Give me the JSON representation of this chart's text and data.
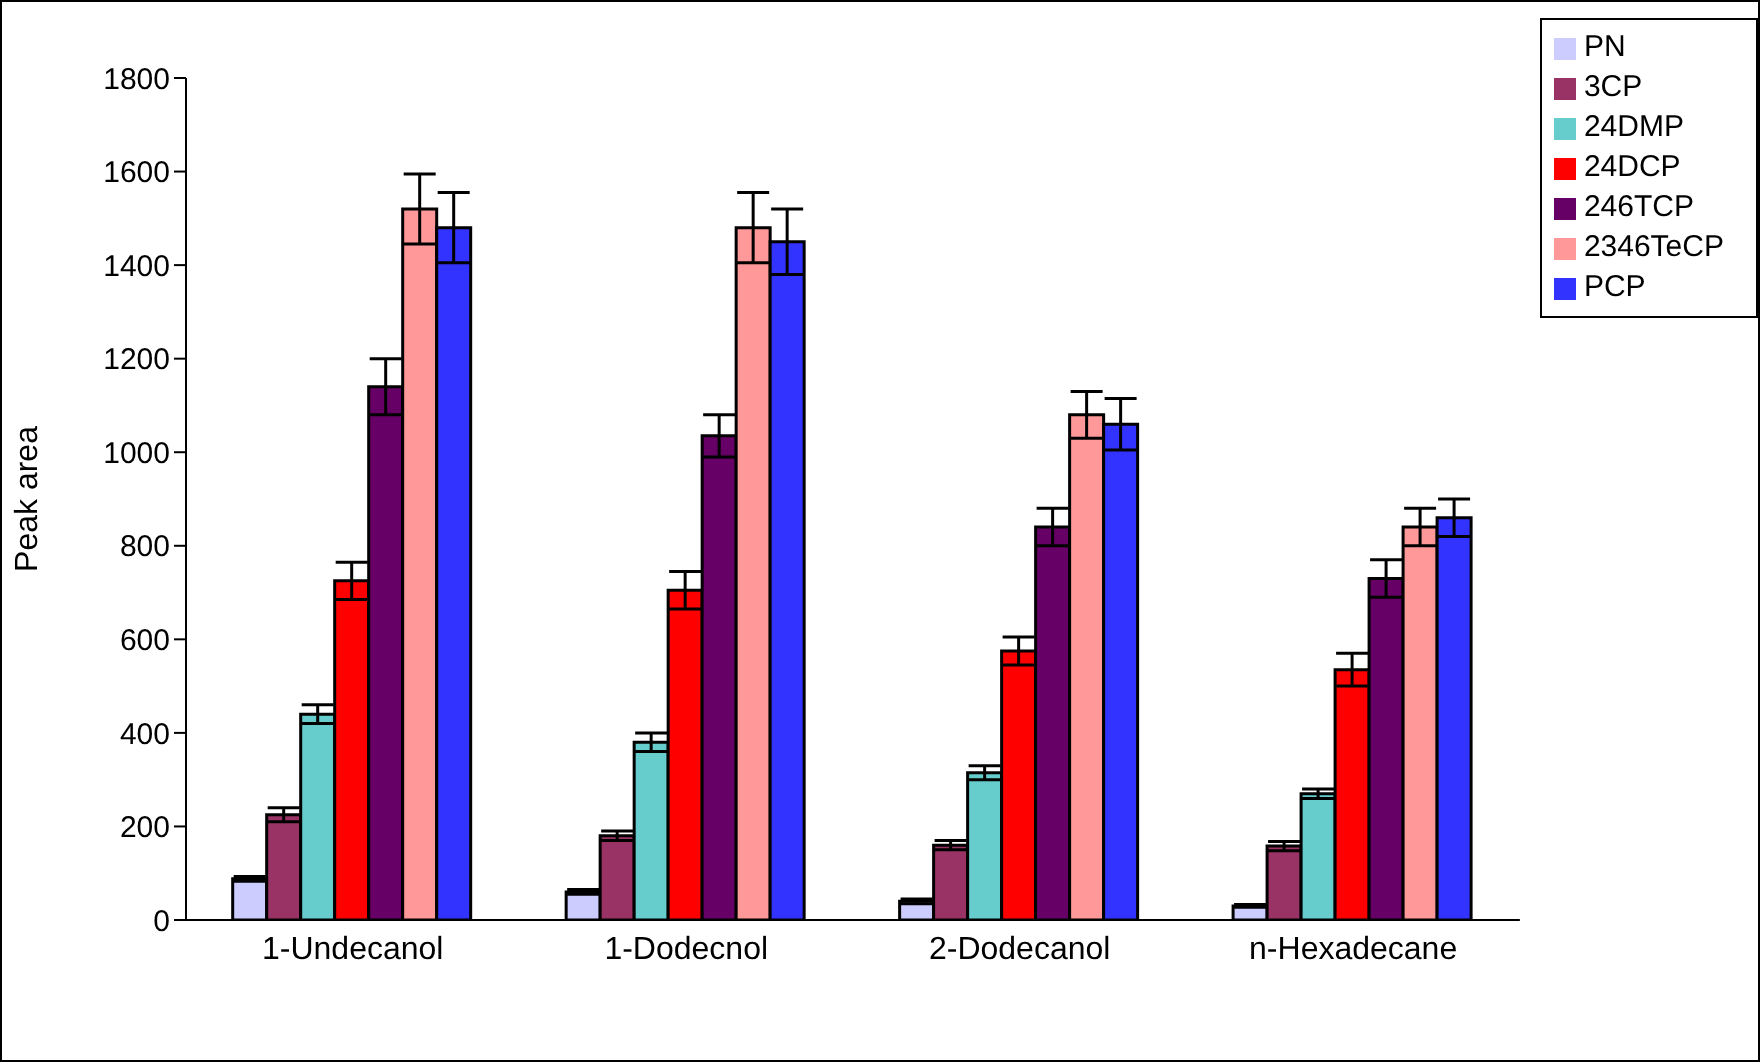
{
  "chart_data": {
    "type": "bar",
    "ylabel": "Peak area",
    "categories": [
      "1-Undecanol",
      "1-Dodecnol",
      "2-Dodecanol",
      "n-Hexadecane"
    ],
    "series": [
      {
        "name": "PN",
        "color": "#ccccff",
        "values": [
          88,
          60,
          40,
          30
        ],
        "errors": [
          5,
          5,
          5,
          3
        ]
      },
      {
        "name": "3CP",
        "color": "#993366",
        "values": [
          225,
          180,
          160,
          158
        ],
        "errors": [
          15,
          10,
          10,
          10
        ]
      },
      {
        "name": "24DMP",
        "color": "#66cccc",
        "values": [
          440,
          380,
          315,
          270
        ],
        "errors": [
          20,
          20,
          15,
          10
        ]
      },
      {
        "name": "24DCP",
        "color": "#ff0000",
        "values": [
          725,
          705,
          575,
          535
        ],
        "errors": [
          40,
          40,
          30,
          35
        ]
      },
      {
        "name": "246TCP",
        "color": "#660066",
        "values": [
          1140,
          1035,
          840,
          730
        ],
        "errors": [
          60,
          45,
          40,
          40
        ]
      },
      {
        "name": "2346TeCP",
        "color": "#ff9999",
        "values": [
          1520,
          1480,
          1080,
          840
        ],
        "errors": [
          75,
          75,
          50,
          40
        ]
      },
      {
        "name": "PCP",
        "color": "#3333ff",
        "values": [
          1480,
          1450,
          1060,
          860
        ],
        "errors": [
          75,
          70,
          55,
          40
        ]
      }
    ],
    "ylim": [
      0,
      1800
    ],
    "yticks": [
      0,
      200,
      400,
      600,
      800,
      1000,
      1200,
      1400,
      1600,
      1800
    ],
    "grid": false,
    "legend": "top right"
  }
}
